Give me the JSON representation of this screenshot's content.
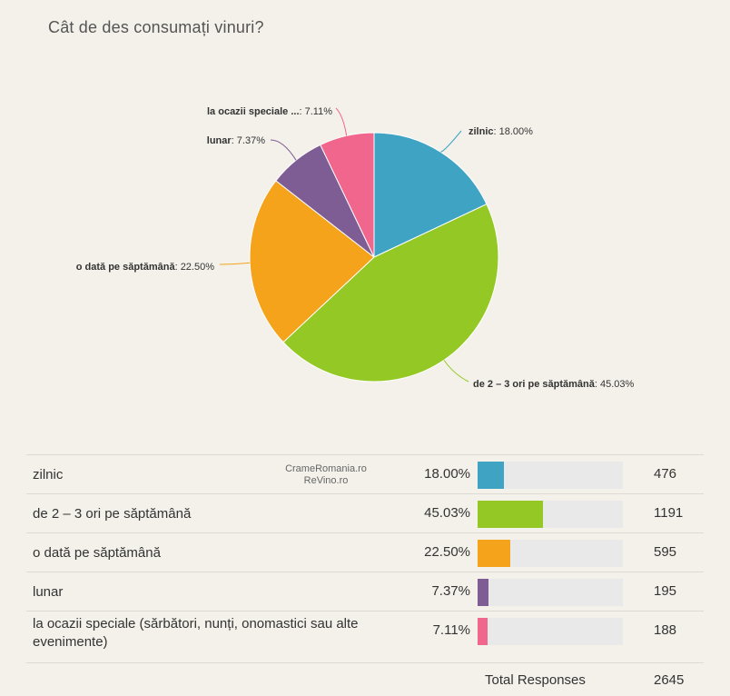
{
  "title": "Cât de des consumați vinuri?",
  "watermark": {
    "line1": "CrameRomania.ro",
    "line2": "ReVino.ro"
  },
  "chart_data": {
    "type": "pie",
    "title": "Cât de des consumați vinuri?",
    "slices": [
      {
        "label": "zilnic",
        "short_label": "zilnic",
        "percent": 18.0,
        "percent_text": "18.00%",
        "count": 476,
        "color": "#3fa3c4"
      },
      {
        "label": "de 2 – 3 ori pe săptămână",
        "short_label": "de 2 – 3 ori pe săptămână",
        "percent": 45.03,
        "percent_text": "45.03%",
        "count": 1191,
        "color": "#94c824"
      },
      {
        "label": "o dată pe săptămână",
        "short_label": "o dată pe săptămână",
        "percent": 22.5,
        "percent_text": "22.50%",
        "count": 595,
        "color": "#f4a31b"
      },
      {
        "label": "lunar",
        "short_label": "lunar",
        "percent": 7.37,
        "percent_text": "7.37%",
        "count": 195,
        "color": "#7e5c94"
      },
      {
        "label": "la ocazii speciale (sărbători, nunți, onomastici sau alte evenimente)",
        "short_label": "la ocazii speciale ...",
        "percent": 7.11,
        "percent_text": "7.11%",
        "count": 188,
        "color": "#f0668c"
      }
    ]
  },
  "total": {
    "label": "Total Responses",
    "value": "2645"
  }
}
